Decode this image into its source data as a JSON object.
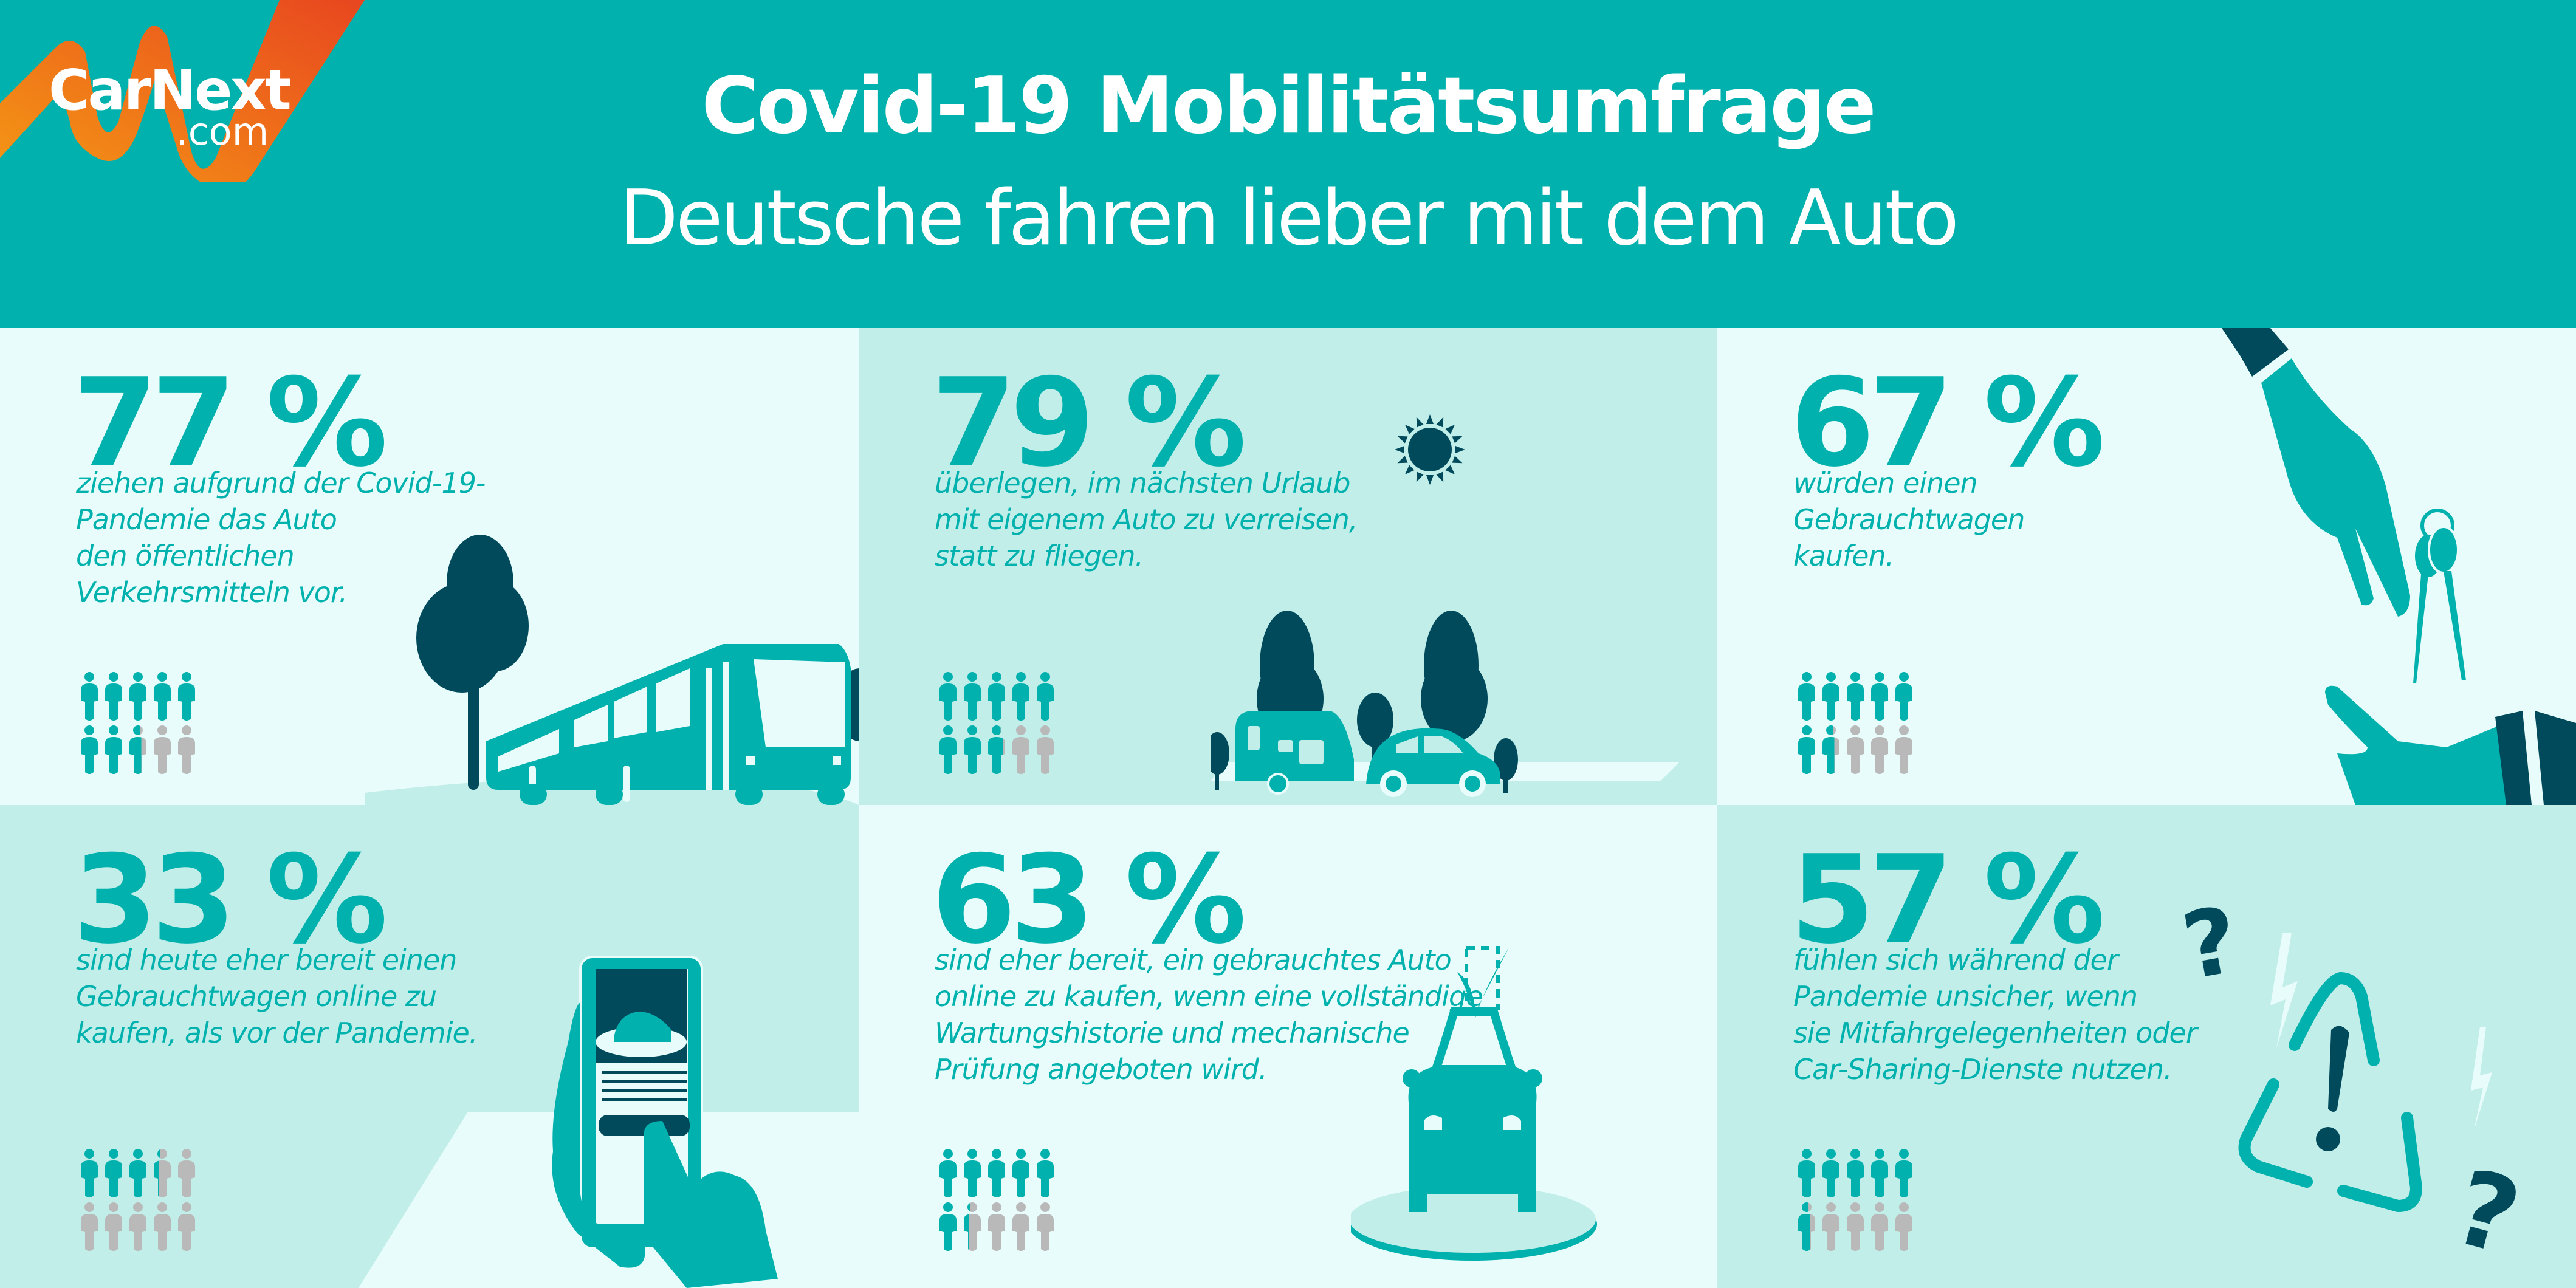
{
  "logo": {
    "name": "CarNext",
    "suffix": ".com"
  },
  "header": {
    "title": "Covid-19 Mobilitätsumfrage",
    "subtitle": "Deutsche fahren lieber mit dem Auto"
  },
  "colors": {
    "header_bg": "#00b1ad",
    "accent": "#00b1ad",
    "dark": "#004a5c",
    "light_bg": "#e8fdfb",
    "mint_bg": "#c2eee9",
    "inactive_person": "#b9b9b9",
    "logo_orange": "#eb6a1e"
  },
  "stats": [
    {
      "percent": "77 %",
      "value": 77,
      "text": "ziehen aufgrund der Covid-19-\nPandemie das Auto\nden öffentlichen\nVerkehrsmitteln vor.",
      "illustration": "bus-icon"
    },
    {
      "percent": "79 %",
      "value": 79,
      "text": "überlegen, im nächsten Urlaub\nmit eigenem Auto zu verreisen,\nstatt zu fliegen.",
      "illustration": "car-caravan-icon"
    },
    {
      "percent": "67 %",
      "value": 67,
      "text": "würden einen\nGebrauchtwagen\nkaufen.",
      "illustration": "key-handover-icon"
    },
    {
      "percent": "33 %",
      "value": 33,
      "text": "sind heute eher bereit einen\nGebrauchtwagen online zu\nkaufen, als vor der Pandemie.",
      "illustration": "smartphone-car-icon"
    },
    {
      "percent": "63 %",
      "value": 63,
      "text": "sind eher bereit, ein gebrauchtes Auto\nonline zu kaufen, wenn eine vollständige\nWartungshistorie und mechanische\nPrüfung angeboten wird.",
      "illustration": "car-checkmark-icon"
    },
    {
      "percent": "57 %",
      "value": 57,
      "text": "fühlen sich während der\nPandemie unsicher, wenn\nsie Mitfahrgelegenheiten oder\nCar-Sharing-Dienste nutzen.",
      "illustration": "warning-question-icon"
    }
  ]
}
